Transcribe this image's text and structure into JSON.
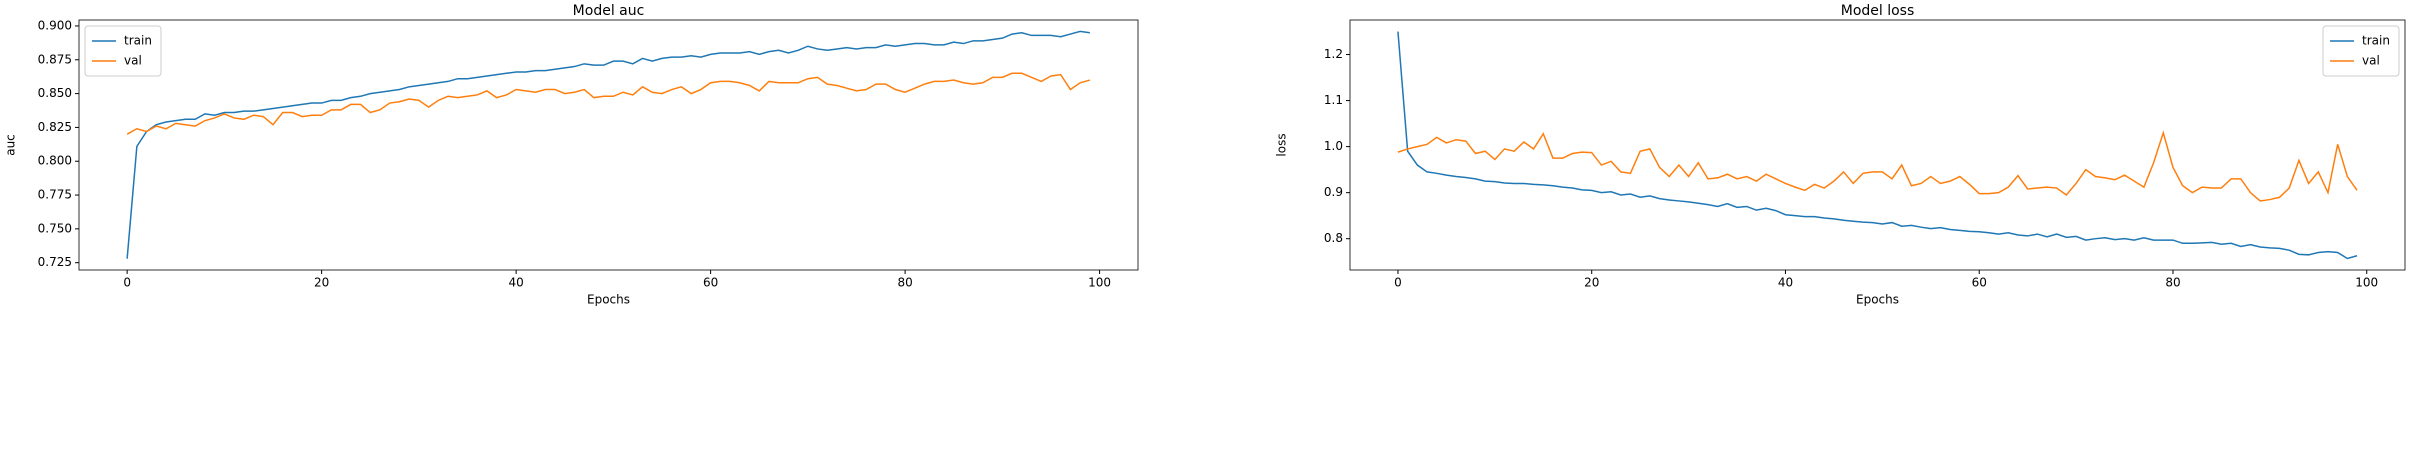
{
  "chart_data": [
    {
      "type": "line",
      "title": "Model auc",
      "xlabel": "Epochs",
      "ylabel": "auc",
      "legend": "upper left",
      "grid": false,
      "x": [
        0,
        1,
        2,
        3,
        4,
        5,
        6,
        7,
        8,
        9,
        10,
        11,
        12,
        13,
        14,
        15,
        16,
        17,
        18,
        19,
        20,
        21,
        22,
        23,
        24,
        25,
        26,
        27,
        28,
        29,
        30,
        31,
        32,
        33,
        34,
        35,
        36,
        37,
        38,
        39,
        40,
        41,
        42,
        43,
        44,
        45,
        46,
        47,
        48,
        49,
        50,
        51,
        52,
        53,
        54,
        55,
        56,
        57,
        58,
        59,
        60,
        61,
        62,
        63,
        64,
        65,
        66,
        67,
        68,
        69,
        70,
        71,
        72,
        73,
        74,
        75,
        76,
        77,
        78,
        79,
        80,
        81,
        82,
        83,
        84,
        85,
        86,
        87,
        88,
        89,
        90,
        91,
        92,
        93,
        94,
        95,
        96,
        97,
        98,
        99
      ],
      "xlim": [
        -4.95,
        103.95
      ],
      "xticks": [
        0,
        20,
        40,
        60,
        80,
        100
      ],
      "ylim": [
        0.7196,
        0.9044
      ],
      "yticks": [
        0.725,
        {
          "value": 0.75,
          "label": "0.750"
        },
        0.775,
        {
          "value": 0.8,
          "label": "0.800"
        },
        0.825,
        {
          "value": 0.85,
          "label": "0.850"
        },
        0.875,
        {
          "value": 0.9,
          "label": "0.900"
        }
      ],
      "series": [
        {
          "name": "train",
          "color": "#1f77b4",
          "values": [
            0.728,
            0.811,
            0.822,
            0.827,
            0.829,
            0.83,
            0.831,
            0.831,
            0.835,
            0.834,
            0.836,
            0.836,
            0.837,
            0.837,
            0.838,
            0.839,
            0.84,
            0.841,
            0.842,
            0.843,
            0.843,
            0.845,
            0.845,
            0.847,
            0.848,
            0.85,
            0.851,
            0.852,
            0.853,
            0.855,
            0.856,
            0.857,
            0.858,
            0.859,
            0.861,
            0.861,
            0.862,
            0.863,
            0.864,
            0.865,
            0.866,
            0.866,
            0.867,
            0.867,
            0.868,
            0.869,
            0.87,
            0.872,
            0.871,
            0.871,
            0.874,
            0.874,
            0.872,
            0.876,
            0.874,
            0.876,
            0.877,
            0.877,
            0.878,
            0.877,
            0.879,
            0.88,
            0.88,
            0.88,
            0.881,
            0.879,
            0.881,
            0.882,
            0.88,
            0.882,
            0.885,
            0.883,
            0.882,
            0.883,
            0.884,
            0.883,
            0.884,
            0.884,
            0.886,
            0.885,
            0.886,
            0.887,
            0.887,
            0.886,
            0.886,
            0.888,
            0.887,
            0.889,
            0.889,
            0.89,
            0.891,
            0.894,
            0.895,
            0.893,
            0.893,
            0.893,
            0.892,
            0.894,
            0.896,
            0.895
          ]
        },
        {
          "name": "val",
          "color": "#ff7f0e",
          "values": [
            0.82,
            0.824,
            0.822,
            0.826,
            0.824,
            0.828,
            0.827,
            0.826,
            0.83,
            0.832,
            0.835,
            0.832,
            0.831,
            0.834,
            0.833,
            0.827,
            0.836,
            0.836,
            0.833,
            0.834,
            0.834,
            0.838,
            0.838,
            0.842,
            0.842,
            0.836,
            0.838,
            0.843,
            0.844,
            0.846,
            0.845,
            0.84,
            0.845,
            0.848,
            0.847,
            0.848,
            0.849,
            0.852,
            0.847,
            0.849,
            0.853,
            0.852,
            0.851,
            0.853,
            0.853,
            0.85,
            0.851,
            0.853,
            0.847,
            0.848,
            0.848,
            0.851,
            0.849,
            0.855,
            0.851,
            0.85,
            0.853,
            0.855,
            0.85,
            0.853,
            0.858,
            0.859,
            0.859,
            0.858,
            0.856,
            0.852,
            0.859,
            0.858,
            0.858,
            0.858,
            0.861,
            0.862,
            0.857,
            0.856,
            0.854,
            0.852,
            0.853,
            0.857,
            0.857,
            0.853,
            0.851,
            0.854,
            0.857,
            0.859,
            0.859,
            0.86,
            0.858,
            0.857,
            0.858,
            0.862,
            0.862,
            0.865,
            0.865,
            0.862,
            0.859,
            0.863,
            0.864,
            0.853,
            0.858,
            0.86
          ]
        }
      ]
    },
    {
      "type": "line",
      "title": "Model loss",
      "xlabel": "Epochs",
      "ylabel": "loss",
      "legend": "upper right",
      "grid": false,
      "x": [
        0,
        1,
        2,
        3,
        4,
        5,
        6,
        7,
        8,
        9,
        10,
        11,
        12,
        13,
        14,
        15,
        16,
        17,
        18,
        19,
        20,
        21,
        22,
        23,
        24,
        25,
        26,
        27,
        28,
        29,
        30,
        31,
        32,
        33,
        34,
        35,
        36,
        37,
        38,
        39,
        40,
        41,
        42,
        43,
        44,
        45,
        46,
        47,
        48,
        49,
        50,
        51,
        52,
        53,
        54,
        55,
        56,
        57,
        58,
        59,
        60,
        61,
        62,
        63,
        64,
        65,
        66,
        67,
        68,
        69,
        70,
        71,
        72,
        73,
        74,
        75,
        76,
        77,
        78,
        79,
        80,
        81,
        82,
        83,
        84,
        85,
        86,
        87,
        88,
        89,
        90,
        91,
        92,
        93,
        94,
        95,
        96,
        97,
        98,
        99
      ],
      "xlim": [
        -4.95,
        103.95
      ],
      "xticks": [
        0,
        20,
        40,
        60,
        80,
        100
      ],
      "ylim": [
        0.732,
        1.275
      ],
      "yticks": [
        0.8,
        0.9,
        {
          "value": 1,
          "label": "1.0"
        },
        1.1,
        1.2
      ],
      "series": [
        {
          "name": "train",
          "color": "#1f77b4",
          "values": [
            1.25,
            0.99,
            0.96,
            0.945,
            0.942,
            0.938,
            0.935,
            0.933,
            0.93,
            0.925,
            0.924,
            0.921,
            0.92,
            0.92,
            0.918,
            0.917,
            0.915,
            0.912,
            0.91,
            0.906,
            0.905,
            0.9,
            0.902,
            0.895,
            0.897,
            0.89,
            0.893,
            0.887,
            0.884,
            0.882,
            0.88,
            0.877,
            0.874,
            0.87,
            0.876,
            0.868,
            0.87,
            0.862,
            0.866,
            0.861,
            0.852,
            0.85,
            0.848,
            0.848,
            0.845,
            0.843,
            0.84,
            0.838,
            0.836,
            0.835,
            0.832,
            0.835,
            0.827,
            0.829,
            0.825,
            0.822,
            0.824,
            0.82,
            0.818,
            0.816,
            0.815,
            0.813,
            0.81,
            0.813,
            0.808,
            0.806,
            0.81,
            0.804,
            0.81,
            0.803,
            0.805,
            0.797,
            0.8,
            0.802,
            0.798,
            0.8,
            0.797,
            0.802,
            0.797,
            0.797,
            0.797,
            0.79,
            0.79,
            0.791,
            0.792,
            0.788,
            0.79,
            0.783,
            0.787,
            0.782,
            0.78,
            0.779,
            0.775,
            0.766,
            0.765,
            0.77,
            0.772,
            0.77,
            0.757,
            0.763
          ]
        },
        {
          "name": "val",
          "color": "#ff7f0e",
          "values": [
            0.988,
            0.995,
            1.0,
            1.005,
            1.02,
            1.008,
            1.015,
            1.012,
            0.985,
            0.99,
            0.972,
            0.995,
            0.99,
            1.01,
            0.995,
            1.028,
            0.975,
            0.975,
            0.985,
            0.988,
            0.987,
            0.96,
            0.968,
            0.945,
            0.942,
            0.99,
            0.995,
            0.955,
            0.935,
            0.96,
            0.935,
            0.965,
            0.93,
            0.932,
            0.94,
            0.93,
            0.935,
            0.925,
            0.94,
            0.93,
            0.92,
            0.912,
            0.905,
            0.918,
            0.91,
            0.925,
            0.945,
            0.92,
            0.942,
            0.945,
            0.945,
            0.93,
            0.96,
            0.915,
            0.92,
            0.935,
            0.92,
            0.925,
            0.935,
            0.918,
            0.898,
            0.898,
            0.9,
            0.912,
            0.937,
            0.908,
            0.91,
            0.912,
            0.91,
            0.895,
            0.92,
            0.95,
            0.935,
            0.932,
            0.928,
            0.938,
            0.925,
            0.912,
            0.965,
            1.03,
            0.955,
            0.915,
            0.9,
            0.912,
            0.91,
            0.91,
            0.93,
            0.93,
            0.9,
            0.882,
            0.885,
            0.89,
            0.91,
            0.97,
            0.92,
            0.945,
            0.9,
            1.005,
            0.935,
            0.905
          ]
        }
      ]
    }
  ]
}
